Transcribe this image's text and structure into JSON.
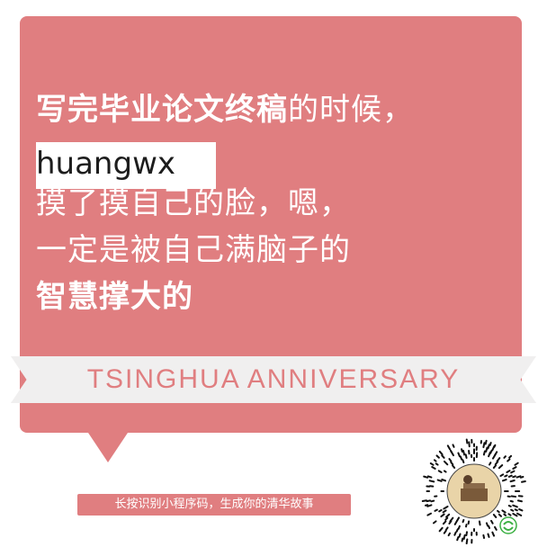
{
  "card": {
    "lines": [
      {
        "bold_part": "写完毕业论文终稿",
        "normal_part": "的时候，"
      },
      {
        "text": "huangwx"
      },
      {
        "text": "摸了摸自己的脸，嗯，"
      },
      {
        "text": "一定是被自己满脑子的"
      },
      {
        "text": "智慧撑大的"
      }
    ]
  },
  "banner": {
    "text": "TSINGHUA ANNIVERSARY"
  },
  "footer": {
    "hint": "长按识别小程序码，生成你的清华故事"
  },
  "colors": {
    "accent": "#e07e80",
    "banner_bg": "#f0efef",
    "text": "#ffffff"
  }
}
